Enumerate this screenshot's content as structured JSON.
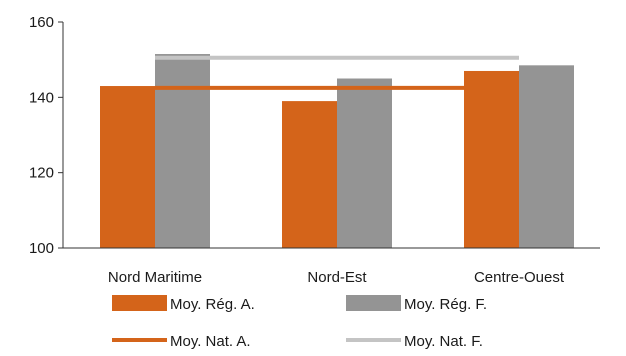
{
  "chart_data": {
    "type": "bar",
    "categories": [
      "Nord Maritime",
      "Nord-Est",
      "Centre-Ouest"
    ],
    "series": [
      {
        "name": "Moy. Rég. A.",
        "kind": "bar",
        "color": "#d4641a",
        "values": [
          143,
          139,
          147
        ]
      },
      {
        "name": "Moy. Rég. F.",
        "kind": "bar",
        "color": "#949494",
        "values": [
          151.5,
          145,
          148.5
        ]
      },
      {
        "name": "Moy. Nat. A.",
        "kind": "line",
        "color": "#d4641a",
        "value": 142.5
      },
      {
        "name": "Moy. Nat. F.",
        "kind": "line",
        "color": "#c4c4c4",
        "value": 150.5
      }
    ],
    "yticks": [
      100,
      120,
      140,
      160
    ],
    "ylim": [
      100,
      160
    ],
    "grid": false,
    "legend_position": "bottom"
  }
}
